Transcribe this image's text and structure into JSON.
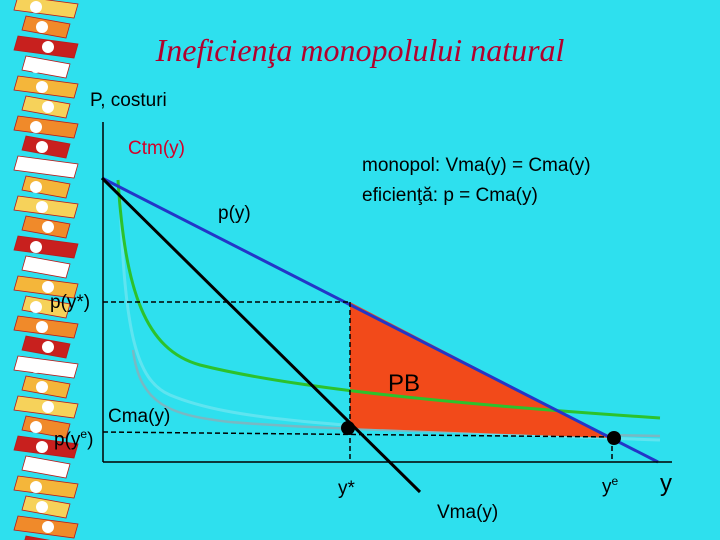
{
  "title": "Ineficienţa monopolului natural",
  "axes": {
    "y_label": "P, costuri",
    "x_label": "y"
  },
  "curves": {
    "average_cost": "Ctm(y)",
    "demand": "p(y)",
    "marginal_cost": "Cma(y)",
    "marginal_revenue": "Vma(y)"
  },
  "conditions": {
    "monopoly": "monopol: Vma(y) = Cma(y)",
    "efficiency": "eficienţă: p = Cma(y)"
  },
  "price_labels": {
    "monopoly_price": "p(y*)",
    "efficient_price_base": "p(y",
    "efficient_price_sup": "e",
    "efficient_price_close": ")"
  },
  "quantity_labels": {
    "monopoly_qty": "y*",
    "efficient_qty_base": "y",
    "efficient_qty_sup": "e"
  },
  "area_label": "PB",
  "colors": {
    "background": "#2ee0ee",
    "title": "#b3002d",
    "demand": "#2336c8",
    "average_cost": "#2cc22c",
    "marginal_cost": "#4edcee",
    "deadweight_loss": "#f24a1a"
  }
}
